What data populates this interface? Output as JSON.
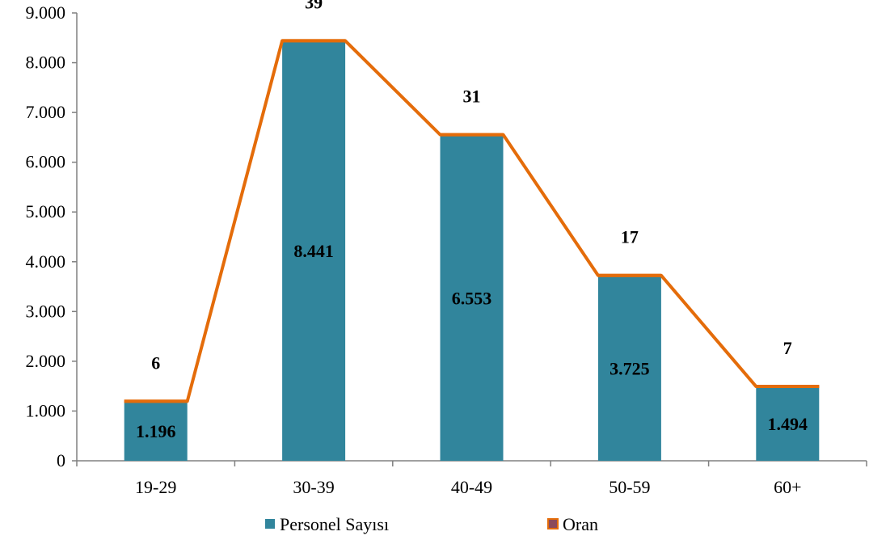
{
  "chart_data": {
    "type": "bar",
    "title": "",
    "xlabel": "",
    "ylabel": "",
    "categories": [
      "19-29",
      "30-39",
      "40-49",
      "50-59",
      "60+"
    ],
    "ylim": [
      0,
      9000
    ],
    "yticks": [
      0,
      1000,
      2000,
      3000,
      4000,
      5000,
      6000,
      7000,
      8000,
      9000
    ],
    "ytick_labels": [
      "0",
      "1.000",
      "2.000",
      "3.000",
      "4.000",
      "5.000",
      "6.000",
      "7.000",
      "8.000",
      "9.000"
    ],
    "grid": false,
    "legend_position": "bottom",
    "series": [
      {
        "name": "Personel Sayısı",
        "type": "bar",
        "color": "#31859C",
        "values": [
          1196,
          8441,
          6553,
          3725,
          1494
        ],
        "value_labels": [
          "1.196",
          "8.441",
          "6.553",
          "3.725",
          "1.494"
        ]
      },
      {
        "name": "Oran",
        "type": "line",
        "color": "#E46C0A",
        "values": [
          6,
          39,
          31,
          17,
          7
        ],
        "value_labels": [
          "6",
          "39",
          "31",
          "17",
          "7"
        ]
      }
    ]
  }
}
